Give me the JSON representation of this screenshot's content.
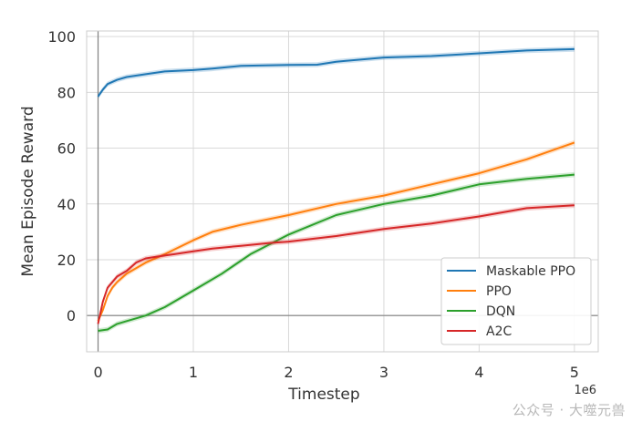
{
  "chart_data": {
    "type": "line",
    "xlabel": "Timestep",
    "ylabel": "Mean Episode Reward",
    "x_scale_label": "1e6",
    "xlim": [
      -0.12,
      5.25
    ],
    "ylim": [
      -13,
      102
    ],
    "x_ticks": [
      0,
      1,
      2,
      3,
      4,
      5
    ],
    "y_ticks": [
      0,
      20,
      40,
      60,
      80,
      100
    ],
    "grid": true,
    "legend_position": "lower-right",
    "series": [
      {
        "name": "Maskable PPO",
        "color": "#1f77b4",
        "x": [
          0,
          0.05,
          0.1,
          0.2,
          0.3,
          0.5,
          0.7,
          1.0,
          1.2,
          1.5,
          2.0,
          2.3,
          2.5,
          3.0,
          3.5,
          4.0,
          4.5,
          5.0
        ],
        "y": [
          78.5,
          81,
          83,
          84.5,
          85.5,
          86.5,
          87.5,
          88,
          88.5,
          89.5,
          89.8,
          89.9,
          91,
          92.5,
          93,
          94,
          95,
          95.5
        ]
      },
      {
        "name": "PPO",
        "color": "#ff7f0e",
        "x": [
          0,
          0.05,
          0.1,
          0.15,
          0.2,
          0.3,
          0.5,
          0.7,
          1.0,
          1.2,
          1.5,
          2.0,
          2.5,
          3.0,
          3.5,
          4.0,
          4.5,
          5.0
        ],
        "y": [
          -2,
          2,
          7,
          10,
          12,
          15,
          19,
          22,
          27,
          30,
          32.5,
          36,
          40,
          43,
          47,
          51,
          56,
          62
        ]
      },
      {
        "name": "DQN",
        "color": "#2ca02c",
        "x": [
          0,
          0.1,
          0.2,
          0.3,
          0.4,
          0.5,
          0.7,
          1.0,
          1.3,
          1.6,
          2.0,
          2.5,
          3.0,
          3.5,
          4.0,
          4.5,
          5.0
        ],
        "y": [
          -5.5,
          -5,
          -3,
          -2,
          -1,
          0,
          3,
          9,
          15,
          22,
          29,
          36,
          40,
          43,
          47,
          49,
          50.5
        ]
      },
      {
        "name": "A2C",
        "color": "#d62728",
        "x": [
          0,
          0.05,
          0.1,
          0.2,
          0.3,
          0.4,
          0.5,
          0.6,
          0.8,
          1.0,
          1.2,
          1.5,
          1.8,
          2.0,
          2.5,
          3.0,
          3.5,
          4.0,
          4.5,
          5.0
        ],
        "y": [
          -3,
          5,
          10,
          14,
          16,
          19,
          20.5,
          21,
          22,
          23,
          24,
          25,
          26,
          26.5,
          28.5,
          31,
          33,
          35.5,
          38.5,
          39.5
        ]
      }
    ]
  },
  "watermark": {
    "text": "公众号 · 大噬元兽"
  }
}
